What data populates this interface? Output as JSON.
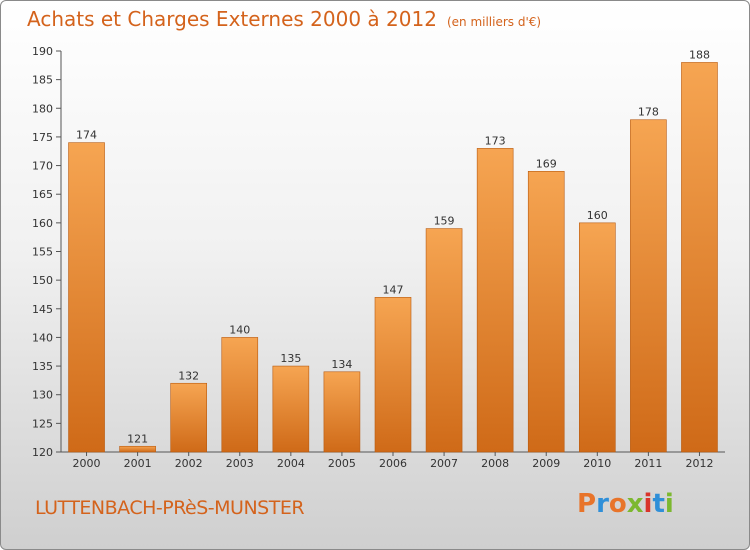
{
  "title": "Achats et Charges Externes 2000 à 2012",
  "unit": "(en milliers d'€)",
  "commune": "LUTTENBACH-PRèS-MUNSTER",
  "logo": {
    "letters": [
      "P",
      "r",
      "o",
      "x",
      "i",
      "t",
      "i"
    ],
    "colors": [
      "#e8742a",
      "#2f8fd8",
      "#e8742a",
      "#7cb82f",
      "#d9342b",
      "#2f8fd8",
      "#7cb82f"
    ]
  },
  "colors": {
    "title": "#d4631c",
    "bar_top": "#f6a552",
    "bar_bottom": "#cf6a18"
  },
  "chart_data": {
    "type": "bar",
    "title": "Achats et Charges Externes 2000 à 2012",
    "xlabel": "",
    "ylabel": "",
    "categories": [
      "2000",
      "2001",
      "2002",
      "2003",
      "2004",
      "2005",
      "2006",
      "2007",
      "2008",
      "2009",
      "2010",
      "2011",
      "2012"
    ],
    "values": [
      174,
      121,
      132,
      140,
      135,
      134,
      147,
      159,
      173,
      169,
      160,
      178,
      188
    ],
    "ylim": [
      120,
      190
    ],
    "yticks": [
      120,
      125,
      130,
      135,
      140,
      145,
      150,
      155,
      160,
      165,
      170,
      175,
      180,
      185,
      190
    ],
    "grid": false,
    "legend": "none"
  }
}
